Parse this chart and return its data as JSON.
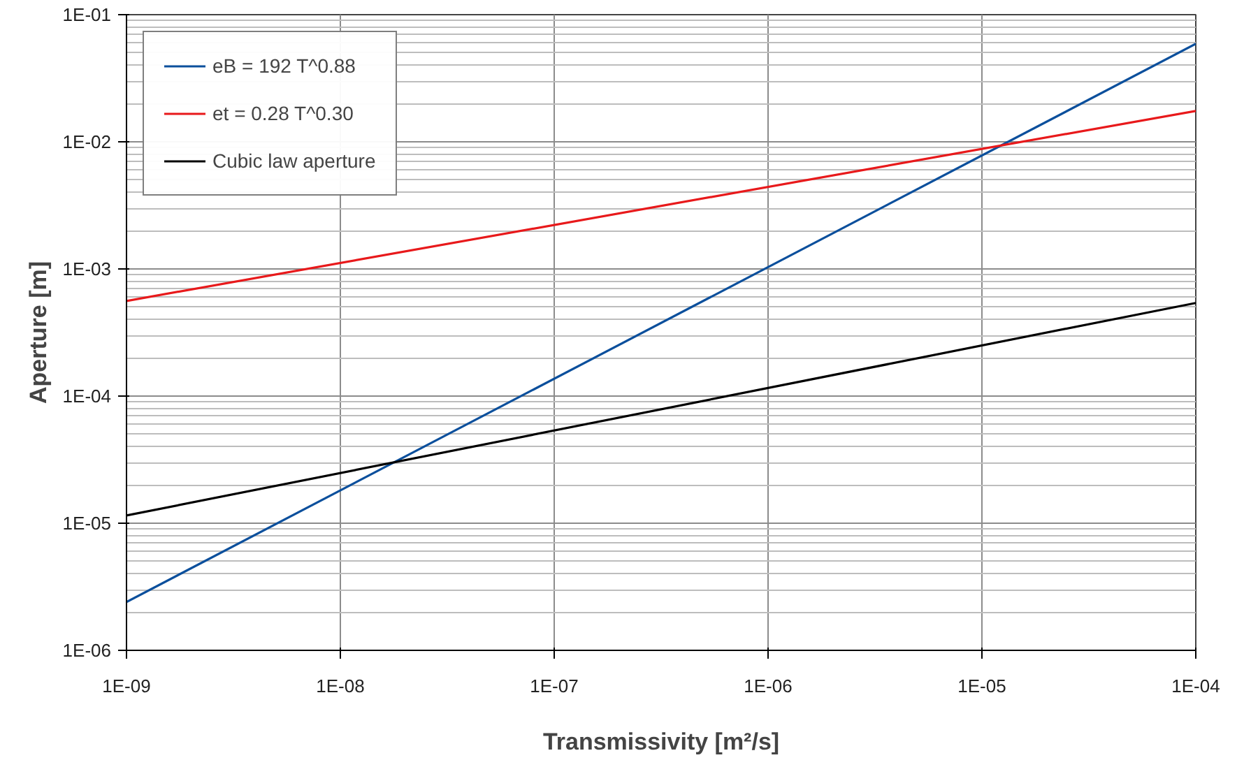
{
  "chart_data": {
    "type": "line",
    "xlabel": "Transmissivity [m²/s]",
    "ylabel": "Aperture [m]",
    "log": "xy",
    "grid": true,
    "legend": "top left",
    "marker": "none",
    "line_style": "solid",
    "x": [
      1e-09,
      0.0001
    ],
    "xlim": [
      1e-09,
      0.0001
    ],
    "ylim": [
      1e-06,
      0.1
    ],
    "xticks": [
      {
        "value": 1e-09,
        "label": "1E-09"
      },
      {
        "value": 1e-08,
        "label": "1E-08"
      },
      {
        "value": 1e-07,
        "label": "1E-07"
      },
      {
        "value": 1e-06,
        "label": "1E-06"
      },
      {
        "value": 1e-05,
        "label": "1E-05"
      },
      {
        "value": 0.0001,
        "label": "1E-04"
      }
    ],
    "yticks": [
      {
        "value": 1e-06,
        "label": "1E-06"
      },
      {
        "value": 1e-05,
        "label": "1E-05"
      },
      {
        "value": 0.0001,
        "label": "1E-04"
      },
      {
        "value": 0.001,
        "label": "1E-03"
      },
      {
        "value": 0.01,
        "label": "1E-02"
      },
      {
        "value": 0.1,
        "label": "1E-01"
      }
    ],
    "series": [
      {
        "name": "eB = 192 T^0.88",
        "color": "#0b4f9c",
        "values": [
          2.4e-06,
          0.059
        ]
      },
      {
        "name": "et = 0.28 T^0.30",
        "color": "#e8191b",
        "values": [
          0.00056,
          0.0175
        ]
      },
      {
        "name": "Cubic law aperture",
        "color": "#000000",
        "values": [
          1.15e-05,
          0.00054
        ]
      }
    ]
  }
}
